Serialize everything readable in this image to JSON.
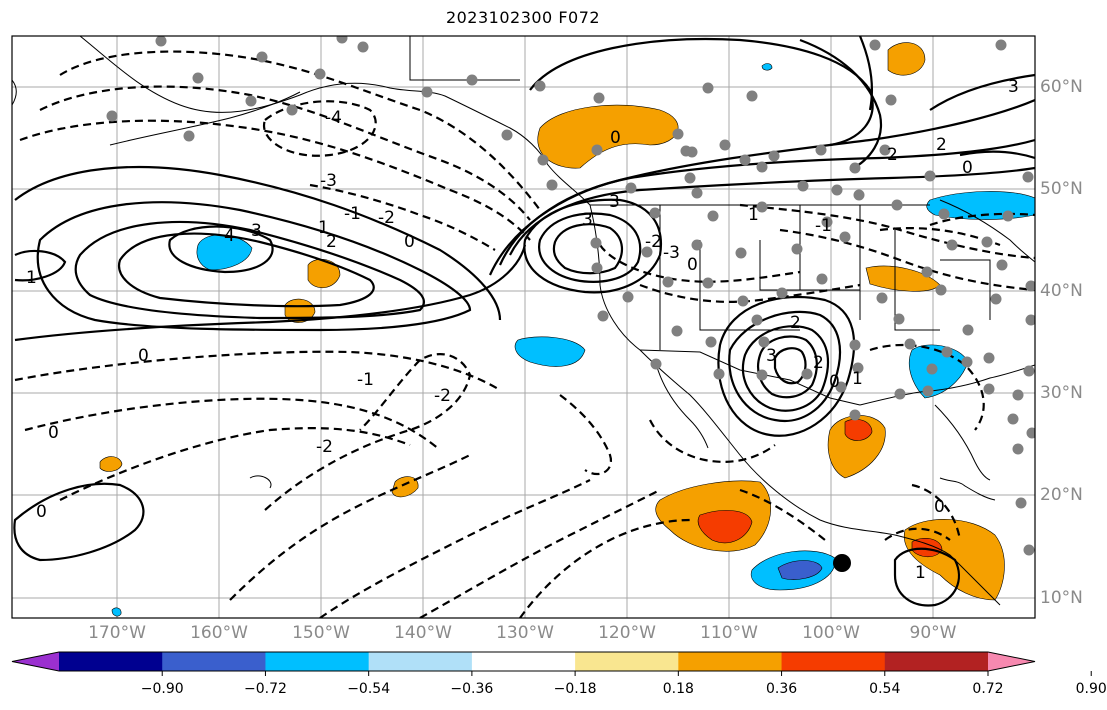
{
  "title": "2023102300 F072",
  "longitude_labels": [
    "170°W",
    "160°W",
    "150°W",
    "140°W",
    "130°W",
    "120°W",
    "110°W",
    "100°W",
    "90°W"
  ],
  "latitude_labels": [
    "60°N",
    "50°N",
    "40°N",
    "30°N",
    "20°N",
    "10°N"
  ],
  "colorbar": {
    "ticks": [
      "−0.90",
      "−0.72",
      "−0.54",
      "−0.36",
      "−0.18",
      "0.18",
      "0.36",
      "0.54",
      "0.72",
      "0.90"
    ],
    "colors": [
      "#9b30d0",
      "#000090",
      "#3a5fcd",
      "#00bfff",
      "#b0e0f8",
      "#ffffff",
      "#f9e690",
      "#f5a000",
      "#f53c00",
      "#b22222",
      "#f789b0"
    ]
  },
  "contour_labels": [
    "-4",
    "-3",
    "-2",
    "-1",
    "0",
    "1",
    "2",
    "3",
    "4"
  ],
  "legend_colors": {
    "neg_strong": "#3a5fcd",
    "neg_med": "#00bfff",
    "pos_med": "#f5a000",
    "pos_strong": "#f53c00"
  }
}
